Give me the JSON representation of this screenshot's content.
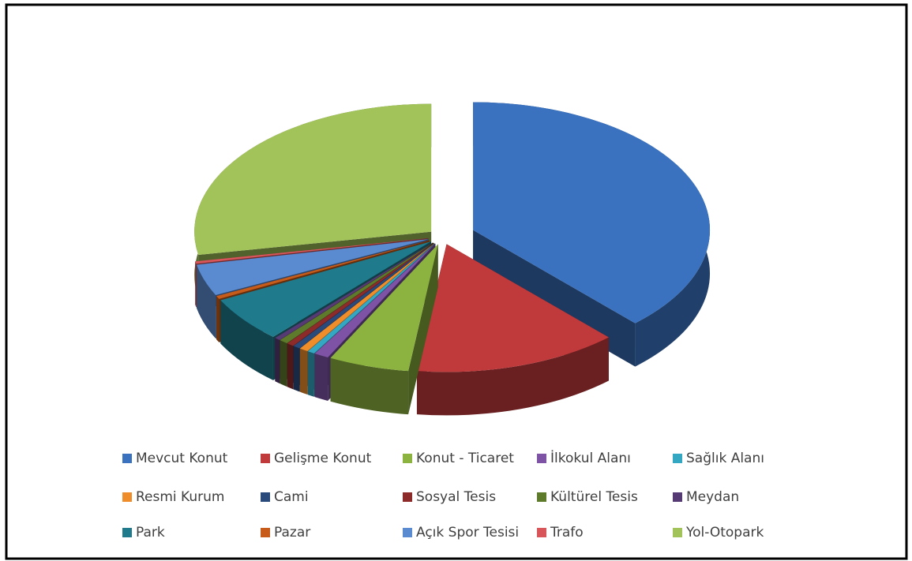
{
  "chart_data": {
    "type": "pie",
    "three_d": true,
    "categories": [
      "Mevcut Konut",
      "Gelişme Konut",
      "Konut - Ticaret",
      "İlkokul Alanı",
      "Sağlık Alanı",
      "Resmi Kurum",
      "Cami",
      "Sosyal Tesis",
      "Kültürel Tesis",
      "Meydan",
      "Park",
      "Pazar",
      "Açık Spor Tesisi",
      "Trafo",
      "Yol-Otopark"
    ],
    "values": [
      38,
      14,
      5.5,
      1,
      0.5,
      0.6,
      0.5,
      0.5,
      0.6,
      0.4,
      5.8,
      0.4,
      4,
      0.3,
      27.9
    ],
    "colors": [
      "#3a72c0",
      "#c0393b",
      "#8cb33f",
      "#7e53a5",
      "#34a7c2",
      "#ef8d2b",
      "#2a4a7c",
      "#8c2b2a",
      "#5e7a2b",
      "#553a74",
      "#1f7a8c",
      "#c75c1a",
      "#5a8ad0",
      "#d8555a",
      "#a2c35a"
    ],
    "legend": "bottom"
  }
}
